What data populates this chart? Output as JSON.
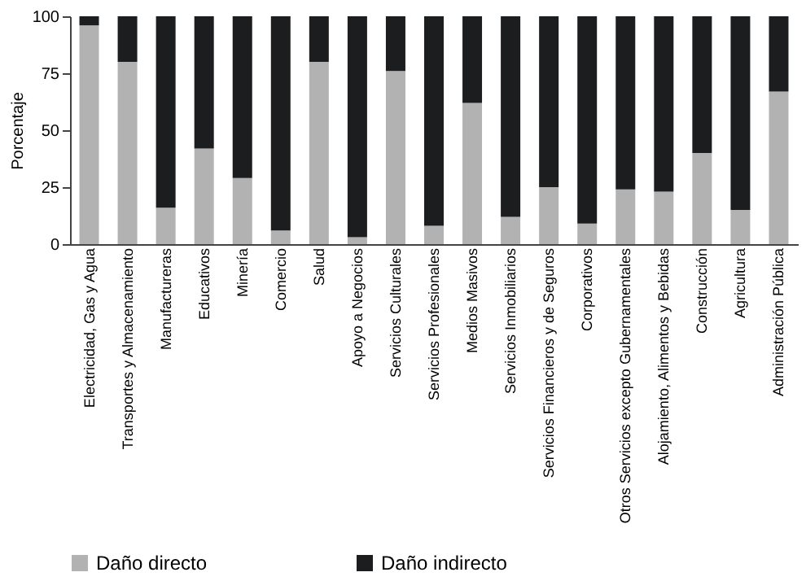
{
  "chart_data": {
    "type": "bar",
    "stacked": true,
    "ylabel": "Porcentaje",
    "categories": [
      "Electricidad, Gas y Agua",
      "Transportes y Almacenamiento",
      "Manufactureras",
      "Educativos",
      "Minería",
      "Comercio",
      "Salud",
      "Apoyo a Negocios",
      "Servicios Culturales",
      "Servicios Profesionales",
      "Medios Masivos",
      "Servicios Inmobiliarios",
      "Servicios Financieros y de Seguros",
      "Corporativos",
      "Otros Servicios excepto Gubernamentales",
      "Alojamiento, Alimentos y Bebidas",
      "Construcción",
      "Agricultura",
      "Administración Pública"
    ],
    "series": [
      {
        "name": "Daño directo",
        "color": "#b2b2b2",
        "values": [
          96,
          80,
          16,
          42,
          29,
          6,
          80,
          3,
          76,
          8,
          62,
          12,
          25,
          9,
          24,
          23,
          40,
          15,
          67
        ]
      },
      {
        "name": "Daño indirecto",
        "color": "#1b1d1f",
        "values": [
          4,
          20,
          84,
          58,
          71,
          94,
          20,
          97,
          24,
          92,
          38,
          88,
          75,
          91,
          76,
          77,
          60,
          85,
          33
        ]
      }
    ],
    "ylim": [
      0,
      100
    ],
    "yticks": [
      0,
      25,
      50,
      75,
      100
    ],
    "grid": false,
    "legend": "bottom"
  }
}
